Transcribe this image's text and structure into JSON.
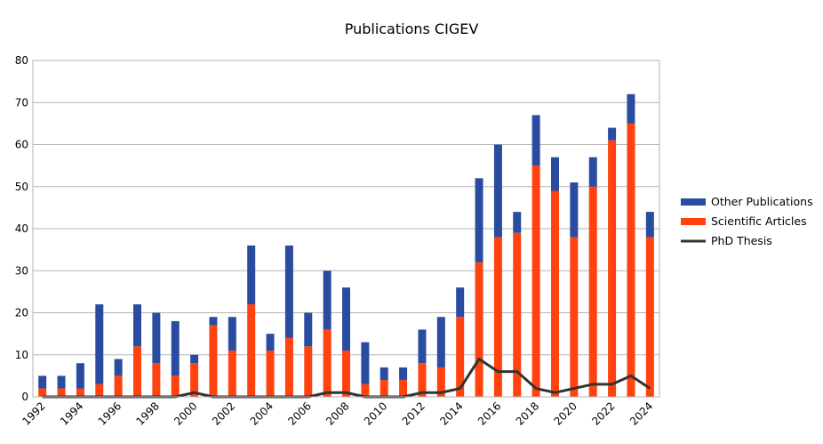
{
  "chart_data": {
    "type": "bar",
    "stacked": true,
    "title": "Publications CIGEV",
    "xlabel": "",
    "ylabel": "",
    "ylim": [
      0,
      80
    ],
    "yticks": [
      0,
      10,
      20,
      30,
      40,
      50,
      60,
      70,
      80
    ],
    "grid": true,
    "legend_position": "right",
    "categories": [
      "1992",
      "1993",
      "1994",
      "1995",
      "1996",
      "1997",
      "1998",
      "1999",
      "2000",
      "2001",
      "2002",
      "2003",
      "2004",
      "2005",
      "2006",
      "2007",
      "2008",
      "2009",
      "2010",
      "2011",
      "2012",
      "2013",
      "2014",
      "2015",
      "2016",
      "2017",
      "2018",
      "2019",
      "2020",
      "2021",
      "2022",
      "2023",
      "2024"
    ],
    "xtick_labels": [
      "1992",
      "",
      "1994",
      "",
      "1996",
      "",
      "1998",
      "",
      "2000",
      "",
      "2002",
      "",
      "2004",
      "",
      "2006",
      "",
      "2008",
      "",
      "2010",
      "",
      "2012",
      "",
      "2014",
      "",
      "2016",
      "",
      "2018",
      "",
      "2020",
      "",
      "2022",
      "",
      "2024"
    ],
    "series": [
      {
        "name": "Scientific Articles",
        "type": "bar",
        "color": "#ff420e",
        "values": [
          2,
          2,
          2,
          3,
          5,
          12,
          8,
          5,
          8,
          17,
          11,
          22,
          11,
          14,
          12,
          16,
          11,
          3,
          4,
          4,
          8,
          7,
          19,
          32,
          38,
          39,
          55,
          49,
          38,
          50,
          61,
          65,
          38
        ]
      },
      {
        "name": "Other Publications",
        "type": "bar",
        "color": "#2a4ca0",
        "values": [
          3,
          3,
          6,
          19,
          4,
          10,
          12,
          13,
          2,
          2,
          8,
          14,
          4,
          22,
          8,
          14,
          15,
          10,
          3,
          3,
          8,
          12,
          7,
          20,
          22,
          5,
          12,
          8,
          13,
          7,
          3,
          7,
          6
        ]
      },
      {
        "name": "PhD Thesis",
        "type": "line",
        "color": "#333333",
        "values": [
          0,
          0,
          0,
          0,
          0,
          0,
          0,
          0,
          1,
          0,
          0,
          0,
          0,
          0,
          0,
          1,
          1,
          0,
          0,
          0,
          1,
          1,
          2,
          9,
          6,
          6,
          2,
          1,
          2,
          3,
          3,
          5,
          2
        ]
      }
    ],
    "legend_order": [
      "Other Publications",
      "Scientific Articles",
      "PhD Thesis"
    ]
  }
}
